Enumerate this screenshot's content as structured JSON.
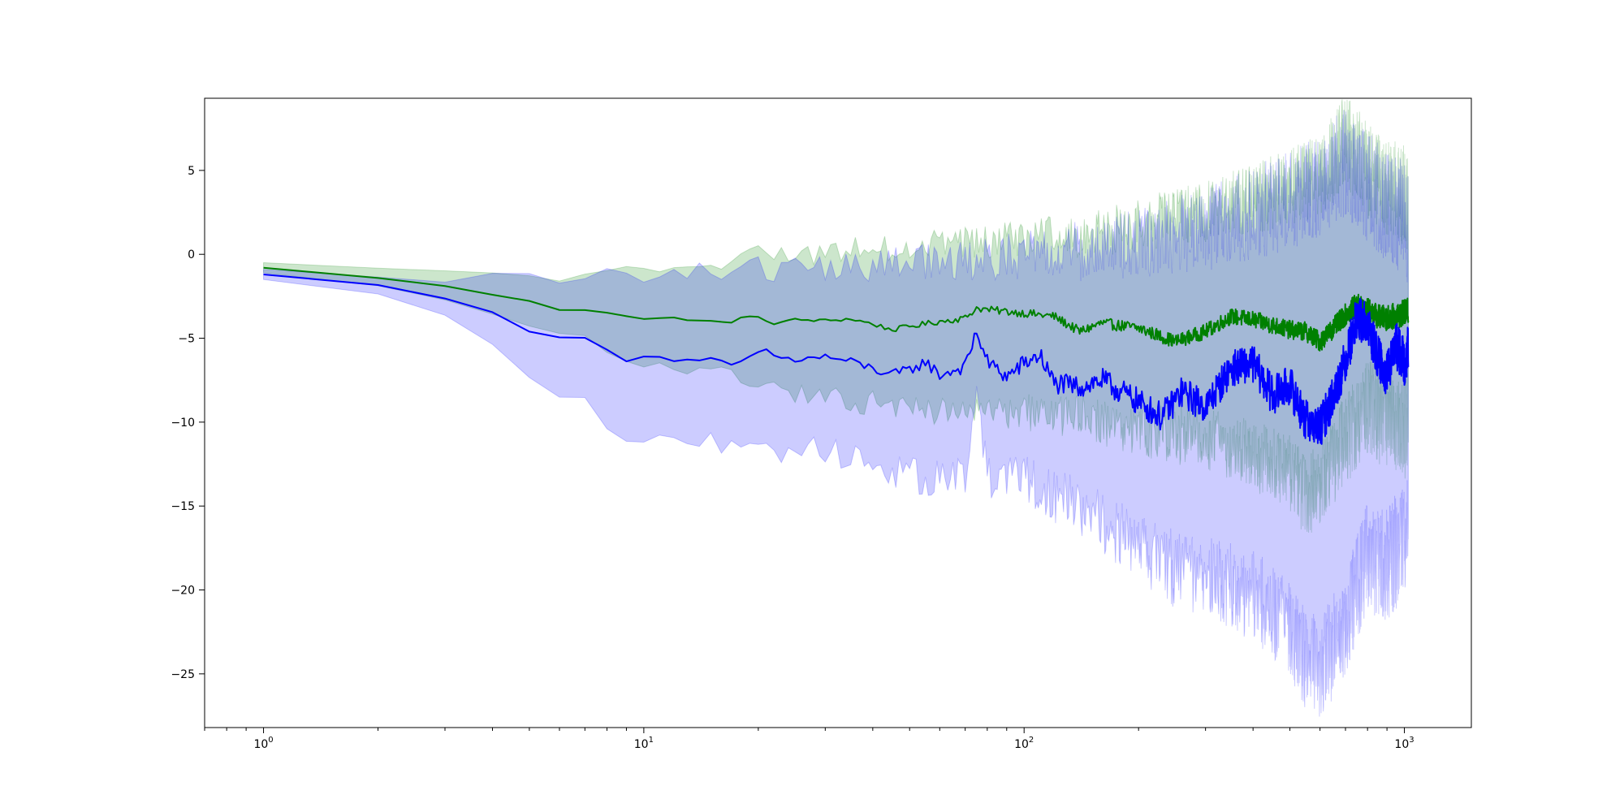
{
  "chart_data": {
    "type": "line",
    "title": "",
    "xlabel": "",
    "ylabel": "",
    "x_scale": "log",
    "xlim": [
      0.7,
      1500
    ],
    "ylim": [
      -28.2,
      9.3
    ],
    "grid": false,
    "legend": "none",
    "x_ticks": [
      {
        "base": "10",
        "exp": "0",
        "value": 1
      },
      {
        "base": "10",
        "exp": "1",
        "value": 10
      },
      {
        "base": "10",
        "exp": "2",
        "value": 100
      },
      {
        "base": "10",
        "exp": "3",
        "value": 1000
      }
    ],
    "y_ticks": [
      {
        "label": "5",
        "value": 5
      },
      {
        "label": "0",
        "value": 0
      },
      {
        "label": "−5",
        "value": -5
      },
      {
        "label": "−10",
        "value": -10
      },
      {
        "label": "−15",
        "value": -15
      },
      {
        "label": "−20",
        "value": -20
      },
      {
        "label": "−25",
        "value": -25
      }
    ],
    "x_range": [
      1,
      1024
    ],
    "series": [
      {
        "color": "#008000",
        "band_color": "#008000",
        "band_opacity": 0.2,
        "mean_anchors": [
          [
            1,
            -0.8
          ],
          [
            2,
            -1.4
          ],
          [
            3,
            -1.9
          ],
          [
            4,
            -2.4
          ],
          [
            5,
            -2.8
          ],
          [
            6,
            -3.3
          ],
          [
            7,
            -3.3
          ],
          [
            8,
            -3.45
          ],
          [
            10,
            -3.85
          ],
          [
            12,
            -3.8
          ],
          [
            15,
            -4.0
          ],
          [
            17,
            -4.1
          ],
          [
            18,
            -3.7
          ],
          [
            20,
            -3.8
          ],
          [
            22,
            -4.1
          ],
          [
            25,
            -3.9
          ],
          [
            30,
            -3.95
          ],
          [
            35,
            -3.85
          ],
          [
            40,
            -4.15
          ],
          [
            45,
            -4.5
          ],
          [
            50,
            -4.3
          ],
          [
            60,
            -4.0
          ],
          [
            70,
            -3.8
          ],
          [
            75,
            -3.2
          ],
          [
            80,
            -3.3
          ],
          [
            100,
            -3.5
          ],
          [
            120,
            -3.7
          ],
          [
            140,
            -4.6
          ],
          [
            160,
            -4.1
          ],
          [
            200,
            -4.4
          ],
          [
            250,
            -5.2
          ],
          [
            300,
            -4.6
          ],
          [
            350,
            -3.7
          ],
          [
            400,
            -3.9
          ],
          [
            500,
            -4.5
          ],
          [
            550,
            -4.6
          ],
          [
            600,
            -5.2
          ],
          [
            650,
            -4.4
          ],
          [
            700,
            -3.6
          ],
          [
            750,
            -3.0
          ],
          [
            800,
            -3.3
          ],
          [
            850,
            -3.7
          ],
          [
            900,
            -3.8
          ],
          [
            1000,
            -3.5
          ],
          [
            1024,
            -3.4
          ]
        ],
        "upper_anchors": [
          [
            1,
            -0.5
          ],
          [
            2,
            -0.8
          ],
          [
            3,
            -1.0
          ],
          [
            4,
            -1.2
          ],
          [
            5,
            -1.3
          ],
          [
            6,
            -1.45
          ],
          [
            7,
            -1.3
          ],
          [
            8,
            -1.0
          ],
          [
            10,
            -1.0
          ],
          [
            12,
            -0.5
          ],
          [
            15,
            -0.6
          ],
          [
            20,
            0.2
          ],
          [
            25,
            -0.4
          ],
          [
            30,
            0.2
          ],
          [
            40,
            0.3
          ],
          [
            50,
            0.6
          ],
          [
            60,
            0.7
          ],
          [
            80,
            0.8
          ],
          [
            100,
            0.9
          ],
          [
            150,
            1.2
          ],
          [
            200,
            1.8
          ],
          [
            300,
            2.6
          ],
          [
            400,
            3.3
          ],
          [
            500,
            4.0
          ],
          [
            600,
            4.6
          ],
          [
            700,
            6.8
          ],
          [
            800,
            5.0
          ],
          [
            900,
            4.0
          ],
          [
            1000,
            3.5
          ],
          [
            1024,
            3.0
          ]
        ],
        "lower_anchors": [
          [
            1,
            -1.1
          ],
          [
            2,
            -1.9
          ],
          [
            3,
            -2.7
          ],
          [
            4,
            -3.5
          ],
          [
            5,
            -4.3
          ],
          [
            6,
            -4.9
          ],
          [
            7,
            -5.0
          ],
          [
            8,
            -5.6
          ],
          [
            10,
            -6.6
          ],
          [
            12,
            -6.7
          ],
          [
            15,
            -7.0
          ],
          [
            20,
            -7.7
          ],
          [
            25,
            -8.2
          ],
          [
            30,
            -8.6
          ],
          [
            40,
            -8.9
          ],
          [
            50,
            -9.2
          ],
          [
            60,
            -9.4
          ],
          [
            80,
            -9.3
          ],
          [
            100,
            -9.4
          ],
          [
            150,
            -9.8
          ],
          [
            200,
            -10.4
          ],
          [
            300,
            -11.0
          ],
          [
            400,
            -12.0
          ],
          [
            500,
            -13.0
          ],
          [
            550,
            -14.5
          ],
          [
            600,
            -13.6
          ],
          [
            700,
            -11.0
          ],
          [
            800,
            -9.0
          ],
          [
            900,
            -10.0
          ],
          [
            1000,
            -10.5
          ],
          [
            1024,
            -10.0
          ]
        ],
        "noise_profile": [
          [
            1,
            0.0
          ],
          [
            10,
            0.05
          ],
          [
            30,
            0.1
          ],
          [
            70,
            0.2
          ],
          [
            150,
            0.3
          ],
          [
            300,
            0.45
          ],
          [
            500,
            0.55
          ],
          [
            700,
            0.65
          ],
          [
            1024,
            0.8
          ]
        ],
        "band_noise_profile": [
          [
            1,
            0.0
          ],
          [
            5,
            0.15
          ],
          [
            10,
            0.3
          ],
          [
            30,
            0.7
          ],
          [
            80,
            1.0
          ],
          [
            150,
            1.4
          ],
          [
            300,
            1.9
          ],
          [
            500,
            2.3
          ],
          [
            700,
            2.8
          ],
          [
            1024,
            3.0
          ]
        ]
      },
      {
        "color": "#0000ff",
        "band_color": "#0000ff",
        "band_opacity": 0.2,
        "mean_anchors": [
          [
            1,
            -1.2
          ],
          [
            2,
            -1.8
          ],
          [
            3,
            -2.6
          ],
          [
            4,
            -3.5
          ],
          [
            5,
            -4.6
          ],
          [
            6,
            -5.0
          ],
          [
            7,
            -4.9
          ],
          [
            8,
            -5.6
          ],
          [
            9,
            -6.4
          ],
          [
            10,
            -6.0
          ],
          [
            12,
            -6.3
          ],
          [
            14,
            -6.4
          ],
          [
            15,
            -6.3
          ],
          [
            17,
            -6.6
          ],
          [
            20,
            -6.0
          ],
          [
            21,
            -5.6
          ],
          [
            22,
            -6.1
          ],
          [
            25,
            -6.3
          ],
          [
            30,
            -6.1
          ],
          [
            35,
            -6.4
          ],
          [
            40,
            -6.8
          ],
          [
            45,
            -7.2
          ],
          [
            50,
            -6.9
          ],
          [
            55,
            -6.4
          ],
          [
            60,
            -7.2
          ],
          [
            70,
            -6.7
          ],
          [
            75,
            -4.6
          ],
          [
            80,
            -6.4
          ],
          [
            90,
            -7.3
          ],
          [
            100,
            -6.5
          ],
          [
            110,
            -6.0
          ],
          [
            120,
            -7.7
          ],
          [
            140,
            -7.9
          ],
          [
            160,
            -7.5
          ],
          [
            200,
            -8.8
          ],
          [
            230,
            -9.7
          ],
          [
            260,
            -8.2
          ],
          [
            300,
            -9.1
          ],
          [
            350,
            -6.8
          ],
          [
            400,
            -6.5
          ],
          [
            450,
            -8.4
          ],
          [
            500,
            -7.8
          ],
          [
            550,
            -9.9
          ],
          [
            600,
            -10.3
          ],
          [
            650,
            -8.5
          ],
          [
            700,
            -6.3
          ],
          [
            750,
            -3.8
          ],
          [
            800,
            -4.2
          ],
          [
            850,
            -6.1
          ],
          [
            900,
            -7.2
          ],
          [
            950,
            -5.4
          ],
          [
            1000,
            -6.4
          ],
          [
            1024,
            -5.6
          ]
        ],
        "upper_anchors": [
          [
            1,
            -0.9
          ],
          [
            2,
            -1.3
          ],
          [
            3,
            -1.6
          ],
          [
            4,
            -1.2
          ],
          [
            5,
            -1.3
          ],
          [
            6,
            -1.5
          ],
          [
            7,
            -1.3
          ],
          [
            8,
            -0.9
          ],
          [
            10,
            -1.5
          ],
          [
            12,
            -1.2
          ],
          [
            15,
            -1.0
          ],
          [
            20,
            -0.8
          ],
          [
            25,
            -1.0
          ],
          [
            30,
            -0.8
          ],
          [
            40,
            -0.7
          ],
          [
            50,
            -0.6
          ],
          [
            60,
            -0.4
          ],
          [
            80,
            -0.3
          ],
          [
            100,
            -0.1
          ],
          [
            150,
            0.3
          ],
          [
            200,
            0.7
          ],
          [
            300,
            1.5
          ],
          [
            400,
            2.4
          ],
          [
            500,
            3.3
          ],
          [
            600,
            4.2
          ],
          [
            700,
            5.5
          ],
          [
            800,
            4.0
          ],
          [
            900,
            3.0
          ],
          [
            1000,
            2.0
          ],
          [
            1024,
            1.5
          ]
        ],
        "lower_anchors": [
          [
            1,
            -1.5
          ],
          [
            2,
            -2.3
          ],
          [
            3,
            -3.5
          ],
          [
            4,
            -5.5
          ],
          [
            5,
            -7.5
          ],
          [
            6,
            -8.3
          ],
          [
            7,
            -8.5
          ],
          [
            8,
            -10.1
          ],
          [
            9,
            -10.9
          ],
          [
            10,
            -11.1
          ],
          [
            12,
            -11.3
          ],
          [
            15,
            -11.1
          ],
          [
            17,
            -11.5
          ],
          [
            20,
            -11.0
          ],
          [
            22,
            -12.0
          ],
          [
            25,
            -11.5
          ],
          [
            30,
            -11.8
          ],
          [
            40,
            -12.6
          ],
          [
            50,
            -13.2
          ],
          [
            60,
            -13.4
          ],
          [
            70,
            -13.0
          ],
          [
            75,
            -8.3
          ],
          [
            80,
            -13.2
          ],
          [
            100,
            -13.5
          ],
          [
            150,
            -15.5
          ],
          [
            200,
            -17.5
          ],
          [
            250,
            -18.8
          ],
          [
            300,
            -19.2
          ],
          [
            400,
            -20.3
          ],
          [
            500,
            -22.5
          ],
          [
            550,
            -24.0
          ],
          [
            600,
            -24.8
          ],
          [
            700,
            -22.0
          ],
          [
            800,
            -18.0
          ],
          [
            900,
            -18.5
          ],
          [
            1000,
            -17.0
          ],
          [
            1024,
            -16.0
          ]
        ],
        "noise_profile": [
          [
            1,
            0.0
          ],
          [
            10,
            0.1
          ],
          [
            30,
            0.25
          ],
          [
            70,
            0.4
          ],
          [
            150,
            0.7
          ],
          [
            300,
            1.0
          ],
          [
            500,
            1.2
          ],
          [
            700,
            1.3
          ],
          [
            1024,
            1.4
          ]
        ],
        "band_noise_profile": [
          [
            1,
            0.0
          ],
          [
            5,
            0.2
          ],
          [
            10,
            0.4
          ],
          [
            30,
            0.9
          ],
          [
            80,
            1.3
          ],
          [
            150,
            1.9
          ],
          [
            300,
            2.5
          ],
          [
            500,
            3.0
          ],
          [
            700,
            3.3
          ],
          [
            1024,
            3.5
          ]
        ]
      }
    ]
  }
}
